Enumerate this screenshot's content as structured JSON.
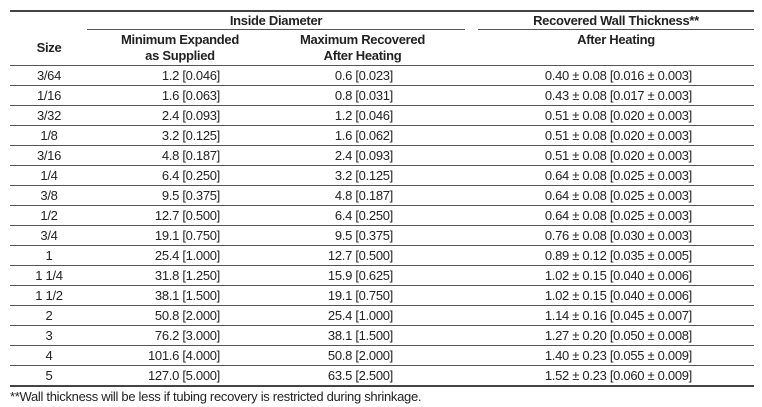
{
  "table": {
    "headers": {
      "size": "Size",
      "inside_diameter": "Inside Diameter",
      "min_expanded": "Minimum Expanded",
      "min_expanded_2": "as Supplied",
      "max_recovered": "Maximum Recovered",
      "max_recovered_2": "After Heating",
      "wall_thickness": "Recovered Wall Thickness**",
      "wall_after": "After Heating"
    },
    "rows": [
      [
        "3/64",
        "1.2 [0.046]",
        "0.6 [0.023]",
        "0.40 ± 0.08 [0.016 ± 0.003]"
      ],
      [
        "1/16",
        "1.6 [0.063]",
        "0.8 [0.031]",
        "0.43 ± 0.08 [0.017 ± 0.003]"
      ],
      [
        "3/32",
        "2.4 [0.093]",
        "1.2 [0.046]",
        "0.51 ± 0.08 [0.020 ± 0.003]"
      ],
      [
        "1/8",
        "3.2 [0.125]",
        "1.6 [0.062]",
        "0.51 ± 0.08 [0.020 ± 0.003]"
      ],
      [
        "3/16",
        "4.8 [0.187]",
        "2.4 [0.093]",
        "0.51 ± 0.08 [0.020 ± 0.003]"
      ],
      [
        "1/4",
        "6.4 [0.250]",
        "3.2 [0.125]",
        "0.64 ± 0.08 [0.025 ± 0.003]"
      ],
      [
        "3/8",
        "9.5 [0.375]",
        "4.8 [0.187]",
        "0.64 ± 0.08 [0.025 ± 0.003]"
      ],
      [
        "1/2",
        "12.7 [0.500]",
        "6.4 [0.250]",
        "0.64 ± 0.08 [0.025 ± 0.003]"
      ],
      [
        "3/4",
        "19.1 [0.750]",
        "9.5 [0.375]",
        "0.76 ± 0.08 [0.030 ± 0.003]"
      ],
      [
        "1",
        "25.4 [1.000]",
        "12.7 [0.500]",
        "0.89 ± 0.12 [0.035 ± 0.005]"
      ],
      [
        "1 1/4",
        "31.8 [1.250]",
        "15.9 [0.625]",
        "1.02 ± 0.15 [0.040 ± 0.006]"
      ],
      [
        "1 1/2",
        "38.1 [1.500]",
        "19.1 [0.750]",
        "1.02 ± 0.15 [0.040 ± 0.006]"
      ],
      [
        "2",
        "50.8 [2.000]",
        "25.4 [1.000]",
        "1.14 ± 0.16 [0.045 ± 0.007]"
      ],
      [
        "3",
        "76.2 [3.000]",
        "38.1 [1.500]",
        "1.27 ± 0.20 [0.050 ± 0.008]"
      ],
      [
        "4",
        "101.6 [4.000]",
        "50.8 [2.000]",
        "1.40 ± 0.23 [0.055 ± 0.009]"
      ],
      [
        "5",
        "127.0 [5.000]",
        "63.5 [2.500]",
        "1.52 ± 0.23 [0.060 ± 0.009]"
      ]
    ]
  },
  "footnote": "**Wall thickness will be less if tubing recovery is restricted during shrinkage."
}
